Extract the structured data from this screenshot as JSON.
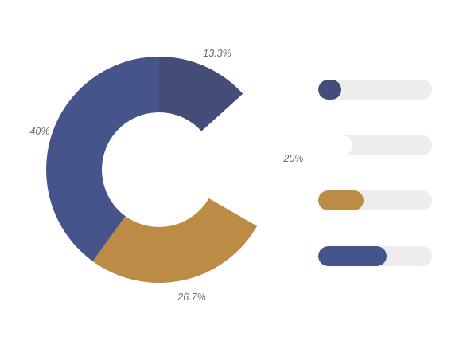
{
  "chart_data": [
    {
      "type": "pie",
      "variant": "donut",
      "start_angle_deg": 0,
      "direction": "clockwise",
      "slices": [
        {
          "label": "13.3%",
          "value": 13.3,
          "color": "#454c78"
        },
        {
          "label": "20%",
          "value": 20.0,
          "color": "#ffffff"
        },
        {
          "label": "26.7%",
          "value": 26.7,
          "color": "#bc8b46"
        },
        {
          "label": "40%",
          "value": 40.0,
          "color": "#45548b"
        }
      ]
    },
    {
      "type": "bar",
      "orientation": "horizontal",
      "max": 100,
      "track_color": "#efedec",
      "bars": [
        {
          "value": 20,
          "color": "#454c78"
        },
        {
          "value": 30,
          "color": "#ffffff"
        },
        {
          "value": 40,
          "color": "#bc8b46"
        },
        {
          "value": 60,
          "color": "#45548b"
        }
      ]
    }
  ]
}
